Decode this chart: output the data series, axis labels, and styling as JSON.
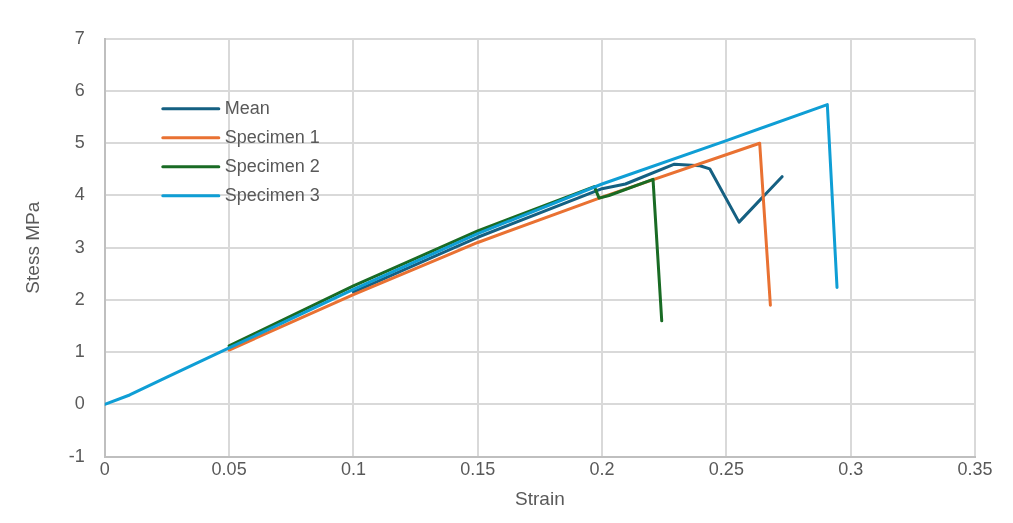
{
  "chart_data": {
    "type": "line",
    "xlabel": "Strain",
    "ylabel": "Stess MPa",
    "xlim": [
      0,
      0.35
    ],
    "xticks": [
      0,
      0.05,
      0.1,
      0.15,
      0.2,
      0.25,
      0.3,
      0.35
    ],
    "ylim": [
      -1,
      7
    ],
    "yticks": [
      -1,
      0,
      1,
      2,
      3,
      4,
      5,
      6,
      7
    ],
    "grid": true,
    "legend": "top left",
    "marker": "none",
    "line_style": "solid",
    "series": [
      {
        "name": "Mean",
        "color": "#156082",
        "x": [
          0.1,
          0.15,
          0.2,
          0.2094,
          0.2291,
          0.2394,
          0.2433,
          0.2551,
          0.2724
        ],
        "values": [
          2.15,
          3.2,
          4.13,
          4.22,
          4.6,
          4.57,
          4.51,
          3.49,
          4.36
        ]
      },
      {
        "name": "Specimen 1",
        "color": "#e97132",
        "x": [
          0.05,
          0.1,
          0.15,
          0.2,
          0.2634,
          0.2677
        ],
        "values": [
          1.04,
          2.1,
          3.1,
          3.97,
          5.0,
          1.9
        ]
      },
      {
        "name": "Specimen 2",
        "color": "#196b24",
        "x": [
          0.05,
          0.1,
          0.15,
          0.1969,
          0.1988,
          0.2028,
          0.2205,
          0.224
        ],
        "values": [
          1.12,
          2.27,
          3.32,
          4.17,
          3.95,
          4.0,
          4.31,
          1.6
        ]
      },
      {
        "name": "Specimen 3",
        "color": "#0f9ed5",
        "x": [
          0,
          0.01,
          0.025,
          0.05,
          0.1,
          0.15,
          0.2,
          0.25,
          0.2906,
          0.2945
        ],
        "values": [
          0,
          0.18,
          0.52,
          1.08,
          2.2,
          3.27,
          4.22,
          5.05,
          5.74,
          2.24
        ]
      }
    ]
  }
}
